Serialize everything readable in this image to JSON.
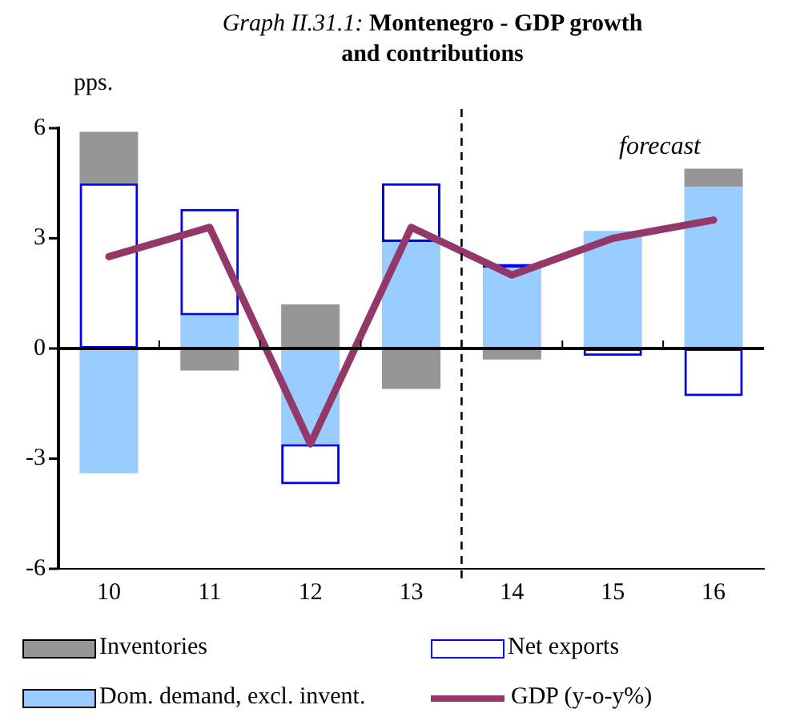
{
  "chart_data": {
    "type": "bar",
    "title": "Graph II.31.1: Montenegro - GDP growth and contributions",
    "ylabel": "pps.",
    "stacked": true,
    "x": [
      10,
      11,
      12,
      13,
      14,
      15,
      16
    ],
    "xlim": [
      9.5,
      16.5
    ],
    "xticks": [
      10,
      11,
      12,
      13,
      14,
      15,
      16
    ],
    "ylim": [
      -6,
      6
    ],
    "yticks": [
      -6,
      -3,
      0,
      3,
      6
    ],
    "grid": false,
    "legend": "bottom",
    "series": [
      {
        "name": "Dom. demand, excl. invent.",
        "color": "#99ccff",
        "values": [
          -3.4,
          0.9,
          -2.6,
          2.9,
          2.2,
          3.2,
          4.4
        ]
      },
      {
        "name": "Net exports",
        "color": "#0000ff",
        "values": [
          4.5,
          2.9,
          -1.1,
          1.6,
          0.1,
          -0.2,
          -1.3
        ]
      },
      {
        "name": "Inventories",
        "color": "#969696",
        "values": [
          1.4,
          -0.6,
          1.2,
          -1.1,
          -0.3,
          0,
          0.5
        ]
      },
      {
        "name": "GDP (y-o-y%)",
        "type": "line",
        "color": "#94386a",
        "values": [
          2.5,
          3.3,
          -2.6,
          3.3,
          2.0,
          3.0,
          3.5
        ]
      }
    ],
    "ref_lines": [
      {
        "axis": "x",
        "value": 13.5,
        "line_style": "dashed",
        "color": "#000000"
      },
      {
        "axis": "y",
        "value": 0,
        "line_style": "solid",
        "color": "#000000"
      }
    ],
    "annotations": [
      "forecast"
    ]
  }
}
